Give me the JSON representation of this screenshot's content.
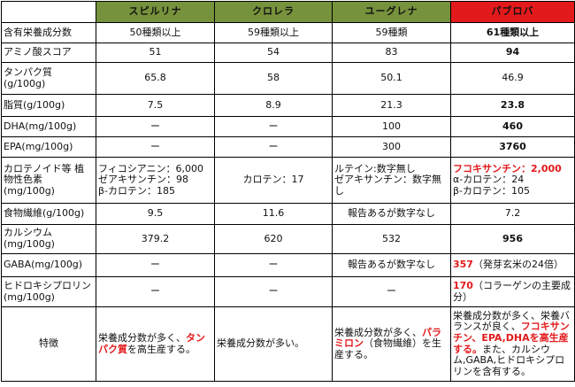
{
  "headers": [
    "スピルリナ",
    "クロレラ",
    "ユーグレナ",
    "パブロバ"
  ],
  "rows": [
    {
      "label": "含有栄養成分数",
      "cells": [
        "50種類以上",
        "59種類以上",
        "59種類",
        "61種類以上"
      ]
    },
    {
      "label": "アミノ酸スコア",
      "cells": [
        "51",
        "54",
        "83",
        "94"
      ]
    },
    {
      "label": "タンパク質 (g/100g)",
      "cells": [
        "65.8",
        "58",
        "50.1",
        "46.9"
      ]
    },
    {
      "label": "脂質(g/100g)",
      "cells": [
        "7.5",
        "8.9",
        "21.3",
        "23.8"
      ]
    },
    {
      "label": "DHA(mg/100g)",
      "cells": [
        "ー",
        "ー",
        "100",
        "460"
      ]
    },
    {
      "label": "EPA(mg/100g)",
      "cells": [
        "ー",
        "ー",
        "300",
        "3760"
      ]
    },
    {
      "label": "カロテノイド等 植物性色素 (mg/100g)",
      "cells": [
        [
          "フィコシアニン：6,000",
          "ゼアキサンチン：98",
          "β-カロテン：185"
        ],
        [
          "カロテン：17"
        ],
        [
          "ルテイン:数字無し",
          "ゼアキサンチン：数字無し"
        ],
        [
          "フコキサンチン：2,000",
          "α-カロテン：24",
          "β-カロテン：105"
        ]
      ]
    },
    {
      "label": "食物繊維(g/100g)",
      "cells": [
        "9.5",
        "11.6",
        "報告あるが数字なし",
        "7.2"
      ]
    },
    {
      "label": "カルシウム (mg/100g)",
      "cells": [
        "379.2",
        "620",
        "532",
        "956"
      ]
    },
    {
      "label": "GABA(mg/100g)",
      "cells": [
        "ー",
        "ー",
        "報告あるが数字なし",
        "357",
        "（発芽玄米の24倍）"
      ]
    },
    {
      "label": "ヒドロキシプロリン (mg/100g)",
      "cells": [
        "ー",
        "ー",
        "ー",
        "170",
        "（コラーゲンの主要成分）"
      ]
    }
  ],
  "feature": {
    "label": "特徴",
    "spirulina": [
      "栄養成分数が多く、",
      "タンパク質",
      "を高生産する。"
    ],
    "chlorella": "栄養成分数が多い。",
    "euglena": [
      "栄養成分数が多く、",
      "パラミロン",
      "（食物繊維）を生産する。"
    ],
    "pavlova": [
      "栄養成分数が多く、栄養バランスが良く、",
      "フコキサンチン、EPA,DHAを高生産する。",
      "また、カルシウム,GABA,ヒドロキシプロリンを含有する。"
    ]
  },
  "colors": {
    "green_header": "#76923c",
    "red_header": "#e31a1c",
    "highlight_text": "#e31a1c"
  }
}
